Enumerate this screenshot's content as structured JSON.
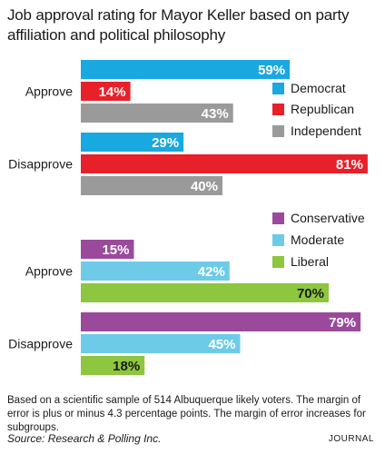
{
  "chart_data": {
    "type": "bar",
    "title": "Job approval rating for Mayor Keller based on party affiliation and political philosophy",
    "xlim": [
      0,
      100
    ],
    "unit": "%",
    "panels": [
      {
        "categories": [
          "Approve",
          "Disapprove"
        ],
        "legend": "right",
        "series": [
          {
            "name": "Democrat",
            "color": "#19a8e0",
            "values": [
              59,
              29
            ]
          },
          {
            "name": "Republican",
            "color": "#e8202a",
            "values": [
              14,
              81
            ]
          },
          {
            "name": "Independent",
            "color": "#9a9a9a",
            "values": [
              43,
              40
            ]
          }
        ]
      },
      {
        "categories": [
          "Approve",
          "Disapprove"
        ],
        "legend": "right",
        "series": [
          {
            "name": "Conservative",
            "color": "#9b4a9b",
            "values": [
              15,
              79
            ]
          },
          {
            "name": "Moderate",
            "color": "#6dcbe8",
            "values": [
              42,
              45
            ]
          },
          {
            "name": "Liberal",
            "color": "#8dc63f",
            "values": [
              70,
              18
            ]
          }
        ]
      }
    ]
  },
  "footer": {
    "note": "Based on a scientific sample of 514  Albuquerque likely voters. The margin of error is plus or minus 4.3 percentage points. The margin of error increases for subgroups.",
    "source": "Source: Research & Polling Inc.",
    "brand": "JOURNAL"
  }
}
